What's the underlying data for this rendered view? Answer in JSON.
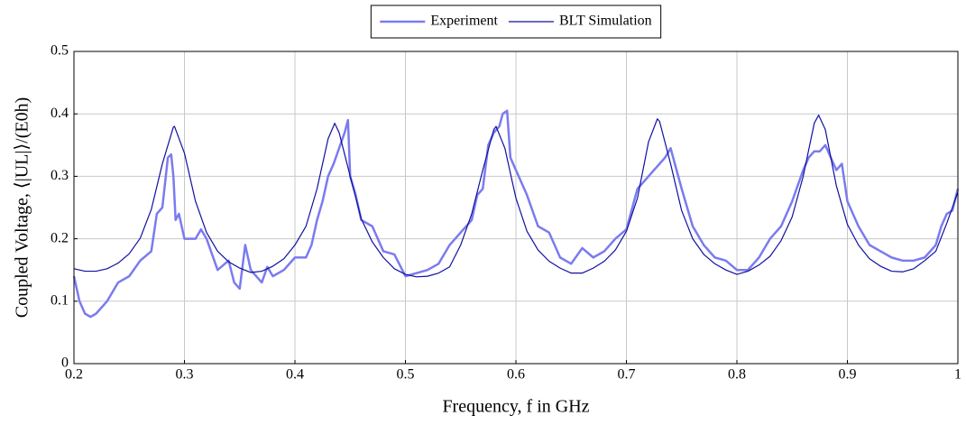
{
  "chart_data": {
    "type": "line",
    "xlabel": "Frequency, f in GHz",
    "ylabel": "Coupled Voltage, ⟨|UL|⟩/(E0h)",
    "xlim": [
      0.2,
      1
    ],
    "ylim": [
      0,
      0.5
    ],
    "xticks": [
      0.2,
      0.3,
      0.4,
      0.5,
      0.6,
      0.7,
      0.8,
      0.9,
      1
    ],
    "yticks": [
      0,
      0.1,
      0.2,
      0.3,
      0.4,
      0.5
    ],
    "grid": true,
    "legend": "top",
    "series": [
      {
        "name": "Experiment",
        "color": "#7b7bef",
        "x": [
          0.2,
          0.205,
          0.21,
          0.215,
          0.22,
          0.23,
          0.24,
          0.25,
          0.26,
          0.27,
          0.275,
          0.28,
          0.285,
          0.288,
          0.29,
          0.292,
          0.295,
          0.3,
          0.31,
          0.315,
          0.32,
          0.33,
          0.34,
          0.345,
          0.35,
          0.355,
          0.36,
          0.37,
          0.375,
          0.38,
          0.39,
          0.4,
          0.41,
          0.415,
          0.42,
          0.425,
          0.43,
          0.435,
          0.44,
          0.445,
          0.448,
          0.45,
          0.455,
          0.46,
          0.47,
          0.48,
          0.49,
          0.5,
          0.51,
          0.52,
          0.53,
          0.54,
          0.55,
          0.56,
          0.565,
          0.57,
          0.575,
          0.58,
          0.585,
          0.588,
          0.592,
          0.595,
          0.6,
          0.61,
          0.62,
          0.63,
          0.64,
          0.65,
          0.66,
          0.67,
          0.68,
          0.69,
          0.7,
          0.71,
          0.72,
          0.725,
          0.73,
          0.735,
          0.74,
          0.75,
          0.76,
          0.77,
          0.78,
          0.79,
          0.8,
          0.81,
          0.82,
          0.83,
          0.84,
          0.85,
          0.86,
          0.865,
          0.87,
          0.875,
          0.88,
          0.89,
          0.895,
          0.9,
          0.91,
          0.92,
          0.93,
          0.94,
          0.95,
          0.96,
          0.97,
          0.98,
          0.985,
          0.99,
          0.995,
          1
        ],
        "values": [
          0.14,
          0.1,
          0.08,
          0.075,
          0.08,
          0.1,
          0.13,
          0.14,
          0.165,
          0.18,
          0.24,
          0.25,
          0.33,
          0.335,
          0.3,
          0.23,
          0.24,
          0.2,
          0.2,
          0.215,
          0.2,
          0.15,
          0.165,
          0.13,
          0.12,
          0.19,
          0.15,
          0.13,
          0.155,
          0.14,
          0.15,
          0.17,
          0.17,
          0.19,
          0.23,
          0.26,
          0.3,
          0.32,
          0.345,
          0.37,
          0.39,
          0.3,
          0.27,
          0.23,
          0.22,
          0.18,
          0.175,
          0.14,
          0.145,
          0.15,
          0.16,
          0.19,
          0.21,
          0.23,
          0.27,
          0.28,
          0.35,
          0.37,
          0.38,
          0.4,
          0.405,
          0.33,
          0.31,
          0.27,
          0.22,
          0.21,
          0.17,
          0.16,
          0.185,
          0.17,
          0.18,
          0.2,
          0.215,
          0.28,
          0.3,
          0.31,
          0.32,
          0.33,
          0.345,
          0.28,
          0.22,
          0.19,
          0.17,
          0.165,
          0.15,
          0.15,
          0.17,
          0.2,
          0.22,
          0.26,
          0.31,
          0.33,
          0.34,
          0.34,
          0.35,
          0.31,
          0.32,
          0.26,
          0.22,
          0.19,
          0.18,
          0.17,
          0.165,
          0.165,
          0.17,
          0.19,
          0.22,
          0.24,
          0.245,
          0.28
        ]
      },
      {
        "name": "BLT Simulation",
        "color": "#1010a0",
        "x": [
          0.2,
          0.21,
          0.22,
          0.23,
          0.24,
          0.25,
          0.26,
          0.27,
          0.28,
          0.29,
          0.291,
          0.3,
          0.31,
          0.32,
          0.33,
          0.34,
          0.35,
          0.36,
          0.37,
          0.38,
          0.39,
          0.4,
          0.41,
          0.42,
          0.43,
          0.436,
          0.44,
          0.45,
          0.46,
          0.47,
          0.48,
          0.49,
          0.5,
          0.51,
          0.52,
          0.53,
          0.54,
          0.55,
          0.56,
          0.57,
          0.58,
          0.582,
          0.59,
          0.6,
          0.61,
          0.62,
          0.63,
          0.64,
          0.65,
          0.66,
          0.67,
          0.68,
          0.69,
          0.7,
          0.71,
          0.72,
          0.728,
          0.73,
          0.74,
          0.75,
          0.76,
          0.77,
          0.78,
          0.79,
          0.8,
          0.81,
          0.82,
          0.83,
          0.84,
          0.85,
          0.86,
          0.87,
          0.874,
          0.88,
          0.89,
          0.9,
          0.91,
          0.92,
          0.93,
          0.94,
          0.95,
          0.96,
          0.97,
          0.98,
          0.99,
          1
        ],
        "values": [
          0.152,
          0.148,
          0.148,
          0.152,
          0.161,
          0.176,
          0.201,
          0.247,
          0.32,
          0.379,
          0.38,
          0.337,
          0.26,
          0.21,
          0.18,
          0.163,
          0.153,
          0.146,
          0.148,
          0.156,
          0.168,
          0.19,
          0.22,
          0.28,
          0.36,
          0.385,
          0.37,
          0.3,
          0.232,
          0.195,
          0.17,
          0.152,
          0.143,
          0.139,
          0.14,
          0.145,
          0.155,
          0.19,
          0.24,
          0.31,
          0.375,
          0.38,
          0.345,
          0.265,
          0.212,
          0.182,
          0.164,
          0.153,
          0.145,
          0.145,
          0.153,
          0.164,
          0.182,
          0.212,
          0.265,
          0.355,
          0.392,
          0.388,
          0.32,
          0.245,
          0.2,
          0.175,
          0.16,
          0.15,
          0.143,
          0.148,
          0.158,
          0.172,
          0.197,
          0.235,
          0.3,
          0.385,
          0.398,
          0.375,
          0.285,
          0.223,
          0.19,
          0.168,
          0.156,
          0.148,
          0.147,
          0.152,
          0.165,
          0.18,
          0.225,
          0.275
        ]
      }
    ]
  }
}
